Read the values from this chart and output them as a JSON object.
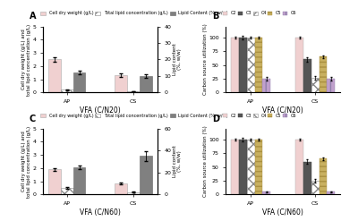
{
  "panel_A": {
    "label": "A",
    "groups": [
      "AP",
      "CS"
    ],
    "bar1_vals": [
      2.5,
      1.3
    ],
    "bar2_vals": [
      0.2,
      0.08
    ],
    "bar3_vals": [
      12,
      10
    ],
    "bar1_err": [
      0.15,
      0.15
    ],
    "bar2_err": [
      0.03,
      0.02
    ],
    "bar3_err": [
      1.0,
      1.0
    ],
    "bar1_color": "#f0d0d0",
    "bar3_color": "#808080",
    "ylabel_left": "Cell dry weight (g/L) and\ntotal lipid concentration (g/L)",
    "ylabel_right": "Lipid content\n(%, w/w)",
    "xlabel": "VFA (C/N20)",
    "ylim_left": [
      0,
      5
    ],
    "ylim_right": [
      0,
      40
    ],
    "legend1": "Cell dry weight (g/L)",
    "legend2": "Total lipid concentration (g/L)",
    "legend3": "Lipid Content (%, w/w)"
  },
  "panel_B": {
    "label": "B",
    "groups": [
      "AP",
      "CS"
    ],
    "C2_vals": [
      100,
      100
    ],
    "C3_vals": [
      100,
      60
    ],
    "C4_vals": [
      100,
      27
    ],
    "C5_vals": [
      100,
      65
    ],
    "C6_vals": [
      25,
      25
    ],
    "C2_err": [
      1,
      2
    ],
    "C3_err": [
      3,
      4
    ],
    "C4_err": [
      2,
      3
    ],
    "C5_err": [
      2,
      2
    ],
    "C6_err": [
      3,
      3
    ],
    "ylabel": "Carbon source utilization (%)",
    "xlabel": "VFA (C/N20)",
    "ylim": [
      0,
      120
    ],
    "C2_color": "#f0d0d0",
    "C3_color": "#555555",
    "C5_color": "#c8b060",
    "C6_color": "#c0a0cc"
  },
  "panel_C": {
    "label": "C",
    "groups": [
      "AP",
      "CS"
    ],
    "bar1_vals": [
      1.9,
      0.85
    ],
    "bar2_vals": [
      0.5,
      0.18
    ],
    "bar3_vals": [
      25,
      35
    ],
    "bar1_err": [
      0.12,
      0.08
    ],
    "bar2_err": [
      0.05,
      0.03
    ],
    "bar3_err": [
      1.5,
      4.5
    ],
    "bar1_color": "#f0d0d0",
    "bar3_color": "#808080",
    "ylabel_left": "Cell dry weight (g/L) and\ntotal lipid concentration (g/L)",
    "ylabel_right": "Lipid content\n(%, w/w)",
    "xlabel": "VFA (C/N60)",
    "ylim_left": [
      0,
      5
    ],
    "ylim_right": [
      0,
      60
    ],
    "legend1": "Cell dry weight (g/L)",
    "legend2": "Total lipid concentration (g/L)",
    "legend3": "Lipid Content (%, w/w)"
  },
  "panel_D": {
    "label": "D",
    "groups": [
      "AP",
      "CS"
    ],
    "C2_vals": [
      100,
      100
    ],
    "C3_vals": [
      100,
      60
    ],
    "C4_vals": [
      100,
      25
    ],
    "C5_vals": [
      100,
      65
    ],
    "C6_vals": [
      5,
      5
    ],
    "C2_err": [
      1,
      2
    ],
    "C3_err": [
      3,
      4
    ],
    "C4_err": [
      2,
      3
    ],
    "C5_err": [
      2,
      2
    ],
    "C6_err": [
      1,
      1
    ],
    "ylabel": "Carbon source utilization (%)",
    "xlabel": "VFA (C/N60)",
    "ylim": [
      0,
      120
    ],
    "C2_color": "#f0d0d0",
    "C3_color": "#555555",
    "C5_color": "#c8b060",
    "C6_color": "#c0a0cc"
  }
}
